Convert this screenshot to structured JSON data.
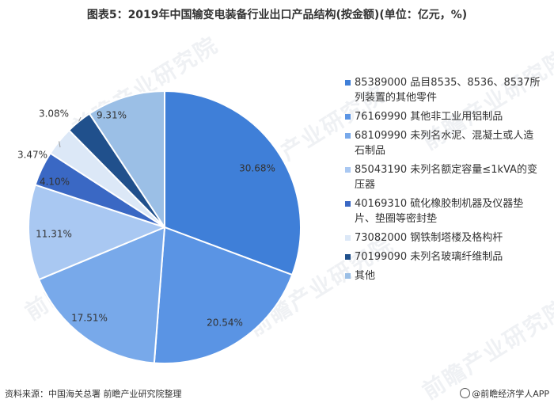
{
  "title": "图表5：2019年中国输变电装备行业出口产品结构(按金额)(单位：亿元，%)",
  "watermark": "前瞻产业研究院",
  "source": "资料来源：中国海关总署 前瞻产业研究院整理",
  "brand": "@前瞻经济学人APP",
  "chart_data": {
    "type": "pie",
    "title": "2019年中国输变电装备行业出口产品结构(按金额)(单位：亿元，%)",
    "start_angle_deg": 0,
    "direction": "clockwise",
    "legend_position": "right",
    "series": [
      {
        "name": "85389000 品目8535、8536、8537所列装置的其他零件",
        "value": 30.68,
        "label": "30.68%",
        "color": "#3f7fd8"
      },
      {
        "name": "76169990 其他非工业用铝制品",
        "value": 20.54,
        "label": "20.54%",
        "color": "#5a94e4"
      },
      {
        "name": "68109990 未列名水泥、混凝土或人造石制品",
        "value": 17.51,
        "label": "17.51%",
        "color": "#78a9ea"
      },
      {
        "name": "85043190 未列名额定容量≤1kVA的变压器",
        "value": 11.31,
        "label": "11.31%",
        "color": "#a9c8f2"
      },
      {
        "name": "40169310 硫化橡胶制机器及仪器垫片、垫圈等密封垫",
        "value": 4.1,
        "label": "4.10%",
        "color": "#3a68c4"
      },
      {
        "name": "73082000 钢铁制塔楼及格构杆",
        "value": 3.47,
        "label": "3.47%",
        "color": "#dce8f7"
      },
      {
        "name": "70199090 未列名玻璃纤维制品",
        "value": 3.08,
        "label": "3.08%",
        "color": "#20508c"
      },
      {
        "name": "其他",
        "value": 9.31,
        "label": "9.31%",
        "color": "#9bbfe6"
      }
    ]
  }
}
